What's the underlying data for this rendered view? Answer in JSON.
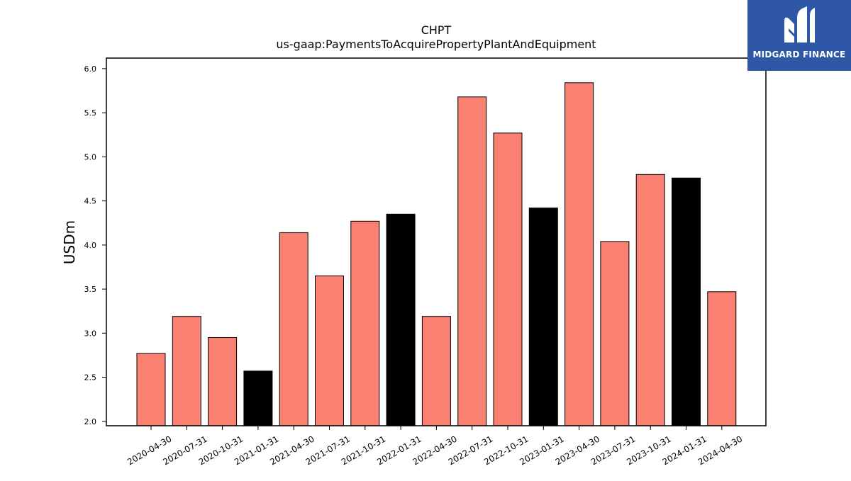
{
  "brand": {
    "name": "MIDGARD FINANCE",
    "logo_icon": "midgard-m-logo-icon",
    "background_color": "#2f57a8"
  },
  "chart_data": {
    "type": "bar",
    "title": "CHPT",
    "subtitle": "us-gaap:PaymentsToAcquirePropertyPlantAndEquipment",
    "xlabel": "",
    "ylabel": "USDm",
    "ylim": [
      1.95,
      6.12
    ],
    "yticks": [
      "2.0",
      "2.5",
      "3.0",
      "3.5",
      "4.0",
      "4.5",
      "5.0",
      "5.5",
      "6.0"
    ],
    "grid": false,
    "categories": [
      "2020-04-30",
      "2020-07-31",
      "2020-10-31",
      "2021-01-31",
      "2021-04-30",
      "2021-07-31",
      "2021-10-31",
      "2022-01-31",
      "2022-04-30",
      "2022-07-31",
      "2022-10-31",
      "2023-01-31",
      "2023-04-30",
      "2023-07-31",
      "2023-10-31",
      "2024-01-31",
      "2024-04-30"
    ],
    "values": [
      2.77,
      3.19,
      2.95,
      2.57,
      4.14,
      3.65,
      4.27,
      4.35,
      3.19,
      5.68,
      5.27,
      4.42,
      5.84,
      4.04,
      4.8,
      4.76,
      3.47
    ],
    "bar_colors": [
      "#fa8072",
      "#fa8072",
      "#fa8072",
      "#000000",
      "#fa8072",
      "#fa8072",
      "#fa8072",
      "#000000",
      "#fa8072",
      "#fa8072",
      "#fa8072",
      "#000000",
      "#fa8072",
      "#fa8072",
      "#fa8072",
      "#000000",
      "#fa8072"
    ]
  }
}
